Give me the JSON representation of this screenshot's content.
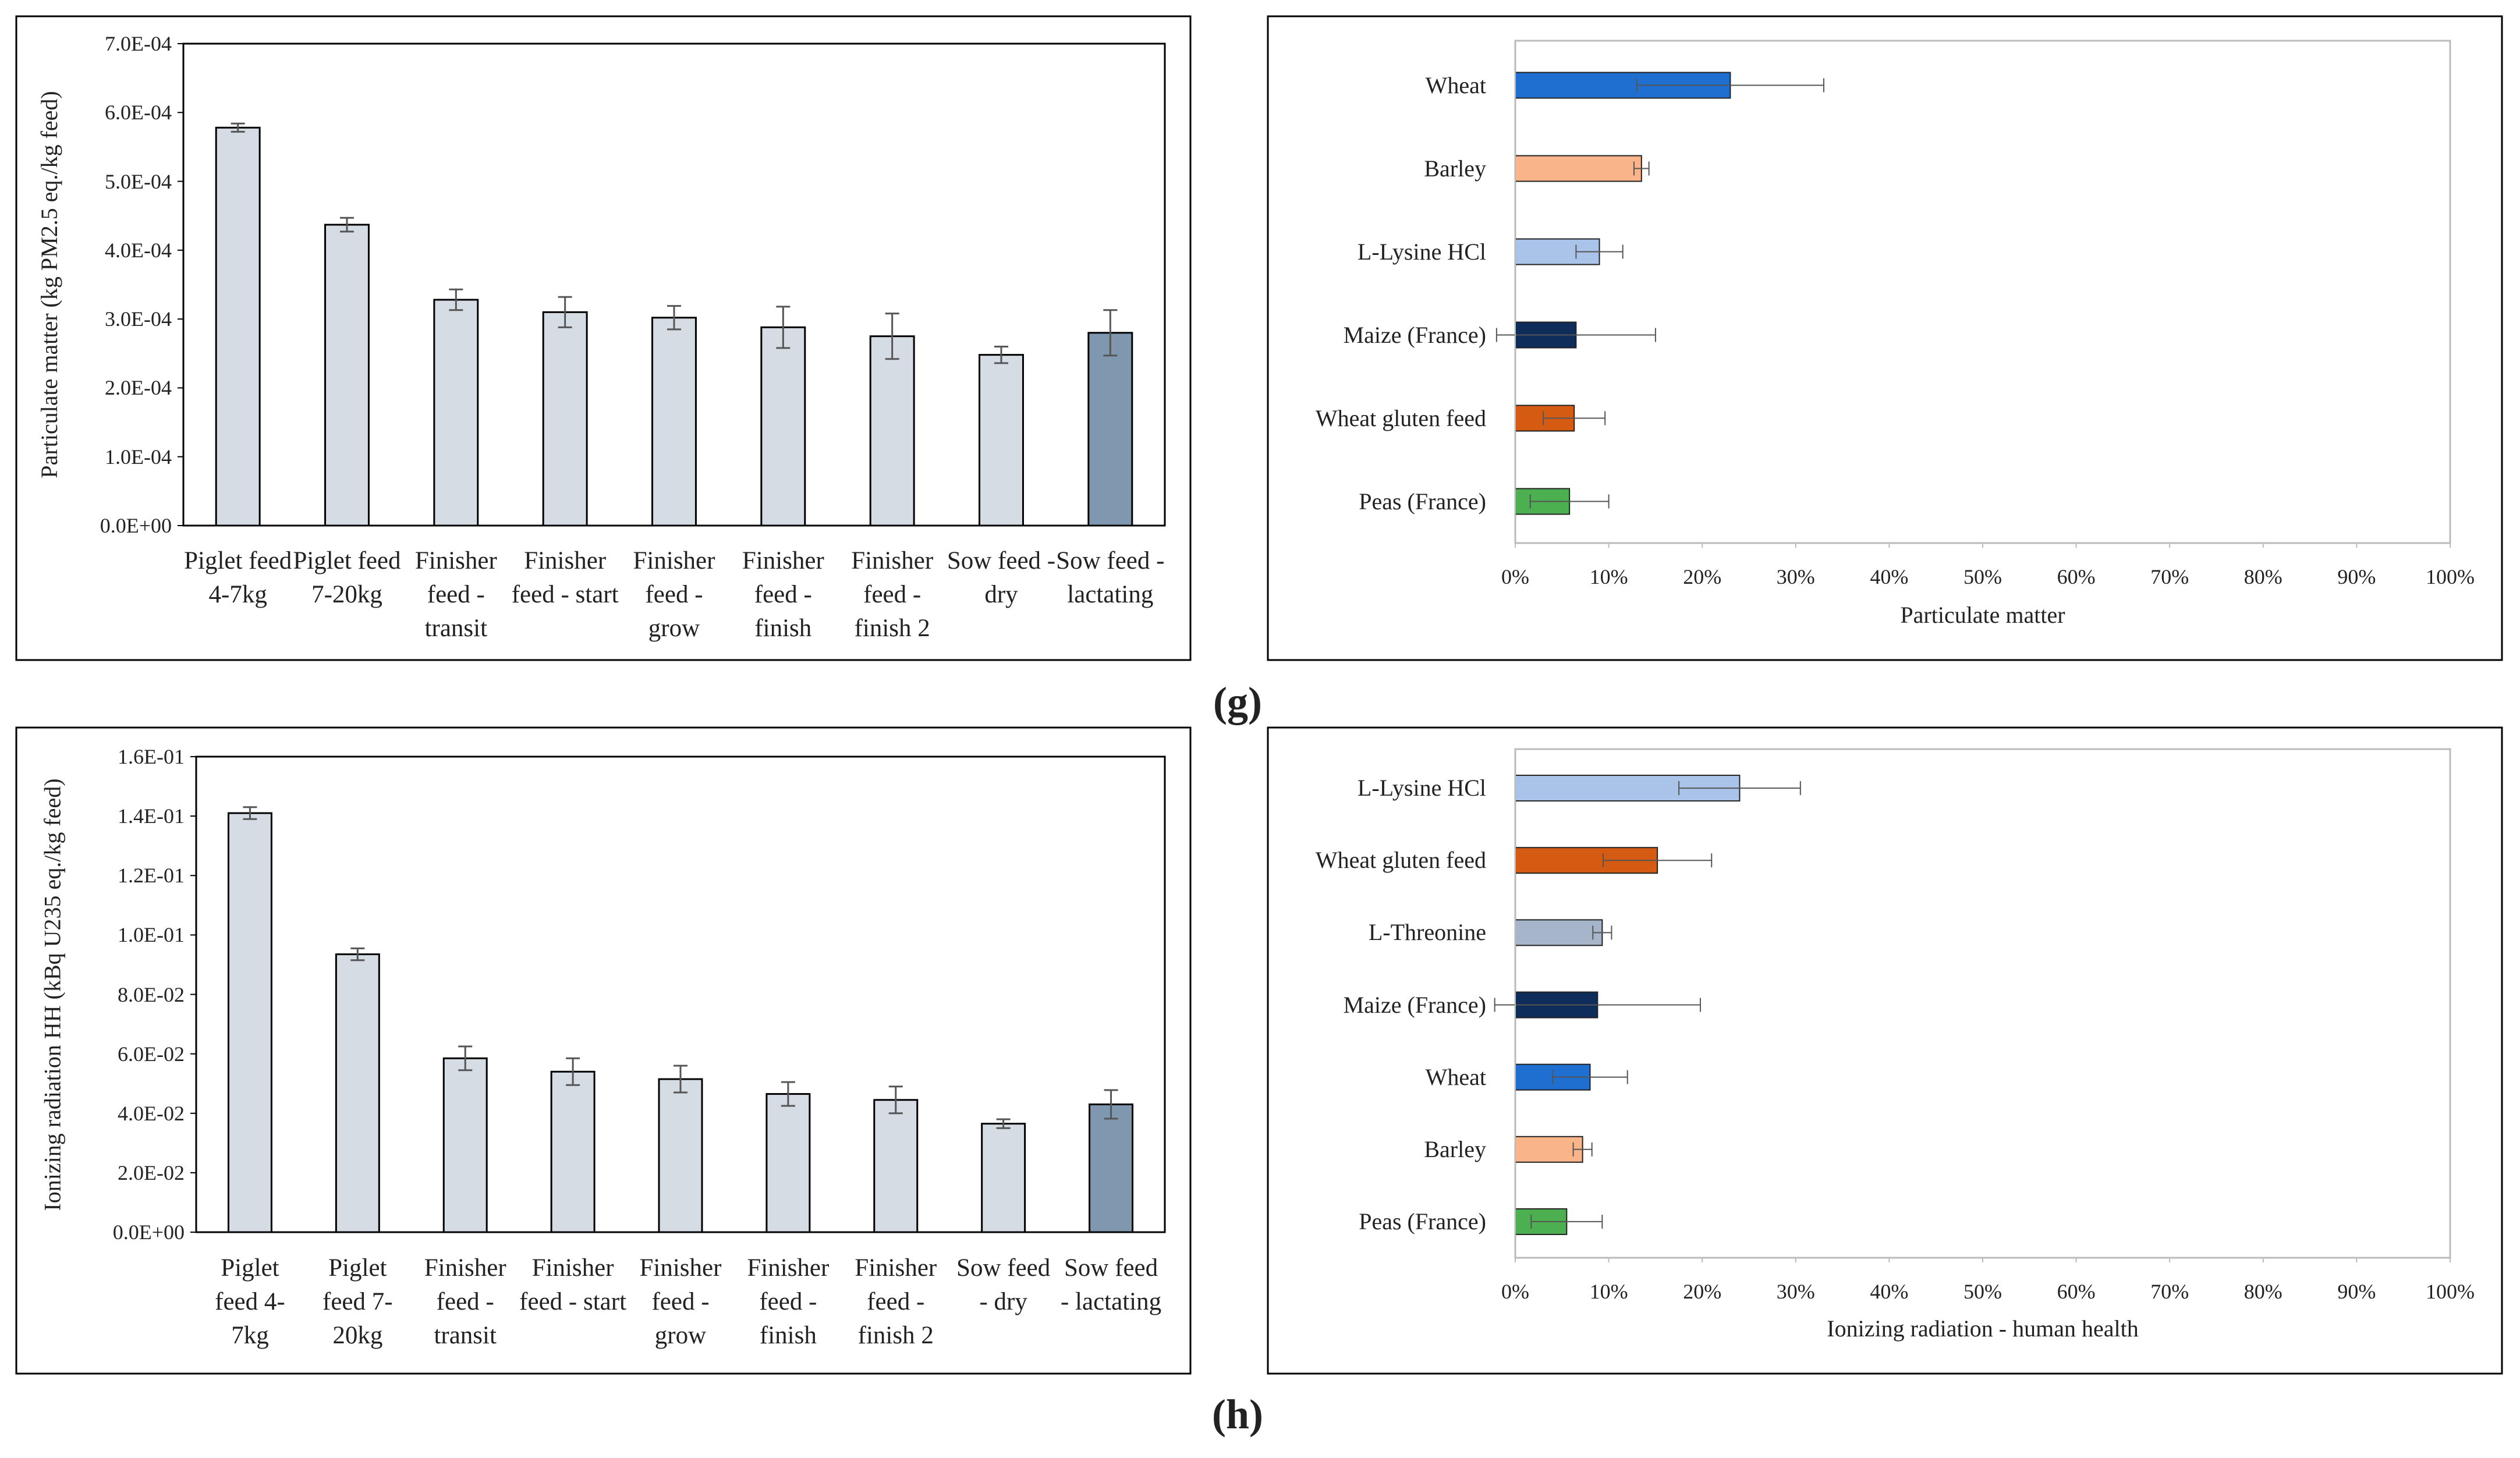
{
  "panel_labels": [
    "(g)",
    "(h)"
  ],
  "chart_data": [
    {
      "type": "bar",
      "ylabel": "Particulate matter (kg PM2.5 eq./kg feed)",
      "categories": [
        "Piglet feed 4-7kg",
        "Piglet feed 7-20kg",
        "Finisher feed - transit",
        "Finisher feed - start",
        "Finisher feed - grow",
        "Finisher feed - finish",
        "Finisher feed - finish 2",
        "Sow feed - dry",
        "Sow feed - lactating"
      ],
      "values": [
        0.000578,
        0.000437,
        0.000328,
        0.00031,
        0.000302,
        0.000288,
        0.000275,
        0.000248,
        0.00028
      ],
      "errors": [
        6e-06,
        1e-05,
        1.5e-05,
        2.2e-05,
        1.7e-05,
        3e-05,
        3.3e-05,
        1.2e-05,
        3.3e-05
      ],
      "colors": [
        "#d6dce4",
        "#d6dce4",
        "#d6dce4",
        "#d6dce4",
        "#d6dce4",
        "#d6dce4",
        "#d6dce4",
        "#d6dce4",
        "#7f98b0"
      ],
      "ylim": [
        0,
        0.0007
      ],
      "yticks": [
        {
          "value": 0,
          "label": "0.0E+00"
        },
        {
          "value": 0.0001,
          "label": "1.0E-04"
        },
        {
          "value": 0.0002,
          "label": "2.0E-04"
        },
        {
          "value": 0.0003,
          "label": "3.0E-04"
        },
        {
          "value": 0.0004,
          "label": "4.0E-04"
        },
        {
          "value": 0.0005,
          "label": "5.0E-04"
        },
        {
          "value": 0.0006,
          "label": "6.0E-04"
        },
        {
          "value": 0.0007,
          "label": "7.0E-04"
        }
      ]
    },
    {
      "type": "barh",
      "xlabel": "Particulate matter",
      "categories": [
        "Wheat",
        "Barley",
        "L-Lysine HCl",
        "Maize (France)",
        "Wheat gluten feed",
        "Peas (France)"
      ],
      "values": [
        23,
        13.5,
        9,
        6.5,
        6.3,
        5.8
      ],
      "errors": [
        10,
        0.8,
        2.5,
        8.5,
        3.3,
        4.2
      ],
      "colors": [
        "#1f6fd0",
        "#f9b48a",
        "#a9c4e8",
        "#0e2d5a",
        "#d55a12",
        "#4caf50"
      ],
      "xlim": [
        0,
        100
      ],
      "xticks": [
        {
          "value": 0,
          "label": "0%"
        },
        {
          "value": 10,
          "label": "10%"
        },
        {
          "value": 20,
          "label": "20%"
        },
        {
          "value": 30,
          "label": "30%"
        },
        {
          "value": 40,
          "label": "40%"
        },
        {
          "value": 50,
          "label": "50%"
        },
        {
          "value": 60,
          "label": "60%"
        },
        {
          "value": 70,
          "label": "70%"
        },
        {
          "value": 80,
          "label": "80%"
        },
        {
          "value": 90,
          "label": "90%"
        },
        {
          "value": 100,
          "label": "100%"
        }
      ]
    },
    {
      "type": "bar",
      "ylabel": "Ionizing radiation HH (kBq U235 eq./kg feed)",
      "categories": [
        "Piglet feed 4-7kg",
        "Piglet feed 7-20kg",
        "Finisher feed - transit",
        "Finisher feed - start",
        "Finisher feed - grow",
        "Finisher feed - finish",
        "Finisher feed - finish 2",
        "Sow feed - dry",
        "Sow feed - lactating"
      ],
      "values": [
        0.141,
        0.0935,
        0.0585,
        0.054,
        0.0515,
        0.0465,
        0.0445,
        0.0365,
        0.043
      ],
      "errors": [
        0.002,
        0.002,
        0.004,
        0.0045,
        0.0045,
        0.004,
        0.0045,
        0.0015,
        0.0048
      ],
      "colors": [
        "#d6dce4",
        "#d6dce4",
        "#d6dce4",
        "#d6dce4",
        "#d6dce4",
        "#d6dce4",
        "#d6dce4",
        "#d6dce4",
        "#7f98b0"
      ],
      "ylim": [
        0,
        0.16
      ],
      "yticks": [
        {
          "value": 0,
          "label": "0.0E+00"
        },
        {
          "value": 0.02,
          "label": "2.0E-02"
        },
        {
          "value": 0.04,
          "label": "4.0E-02"
        },
        {
          "value": 0.06,
          "label": "6.0E-02"
        },
        {
          "value": 0.08,
          "label": "8.0E-02"
        },
        {
          "value": 0.1,
          "label": "1.0E-01"
        },
        {
          "value": 0.12,
          "label": "1.2E-01"
        },
        {
          "value": 0.14,
          "label": "1.4E-01"
        },
        {
          "value": 0.16,
          "label": "1.6E-01"
        }
      ]
    },
    {
      "type": "barh",
      "xlabel": "Ionizing radiation - human health",
      "categories": [
        "L-Lysine HCl",
        "Wheat gluten feed",
        "L-Threonine",
        "Maize (France)",
        "Wheat",
        "Barley",
        "Peas (France)"
      ],
      "values": [
        24,
        15.2,
        9.3,
        8.8,
        8,
        7.2,
        5.5
      ],
      "errors": [
        6.5,
        5.8,
        1,
        11,
        4,
        1,
        3.8
      ],
      "colors": [
        "#a9c4e8",
        "#d55a12",
        "#a6b5c9",
        "#0e2d5a",
        "#1f6fd0",
        "#f9b48a",
        "#4caf50"
      ],
      "xlim": [
        0,
        100
      ],
      "xticks": [
        {
          "value": 0,
          "label": "0%"
        },
        {
          "value": 10,
          "label": "10%"
        },
        {
          "value": 20,
          "label": "20%"
        },
        {
          "value": 30,
          "label": "30%"
        },
        {
          "value": 40,
          "label": "40%"
        },
        {
          "value": 50,
          "label": "50%"
        },
        {
          "value": 60,
          "label": "60%"
        },
        {
          "value": 70,
          "label": "70%"
        },
        {
          "value": 80,
          "label": "80%"
        },
        {
          "value": 90,
          "label": "90%"
        },
        {
          "value": 100,
          "label": "100%"
        }
      ]
    }
  ]
}
